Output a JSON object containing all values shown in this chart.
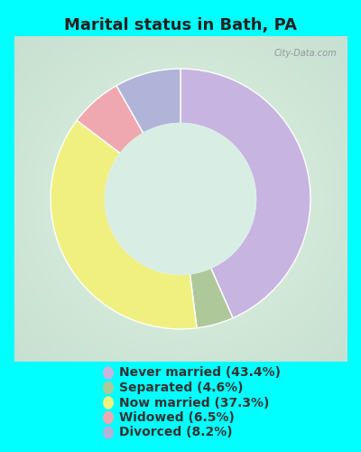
{
  "title": "Marital status in Bath, PA",
  "title_fontsize": 13,
  "title_color": "#222222",
  "background_outer": "#00ffff",
  "chart_bg_color": "#cce8d8",
  "wedge_colors": [
    "#c8b4e0",
    "#afc89a",
    "#f0f080",
    "#f0a8b0",
    "#b0b4d8"
  ],
  "labels": [
    "Never married (43.4%)",
    "Separated (4.6%)",
    "Now married (37.3%)",
    "Widowed (6.5%)",
    "Divorced (8.2%)"
  ],
  "values": [
    43.4,
    4.6,
    37.3,
    6.5,
    8.2
  ],
  "legend_colors": [
    "#c8b4e0",
    "#afc89a",
    "#f0f080",
    "#f0a8b0",
    "#b0b4d8"
  ],
  "legend_text_color": "#333333",
  "legend_fontsize": 10,
  "watermark": "City-Data.com"
}
